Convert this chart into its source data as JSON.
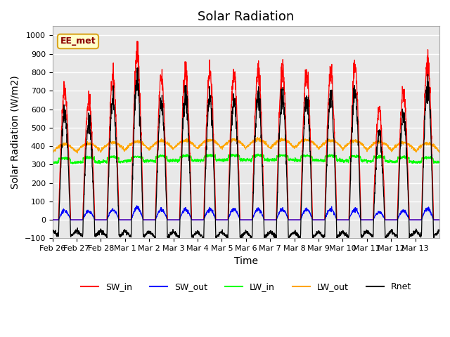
{
  "title": "Solar Radiation",
  "xlabel": "Time",
  "ylabel": "Solar Radiation (W/m2)",
  "ylim": [
    -100,
    1050
  ],
  "annotation": "EE_met",
  "bg_color": "#e8e8e8",
  "grid_color": "white",
  "legend_entries": [
    "SW_in",
    "SW_out",
    "LW_in",
    "LW_out",
    "Rnet"
  ],
  "legend_colors": [
    "red",
    "blue",
    "lime",
    "orange",
    "black"
  ],
  "xtick_labels": [
    "Feb 26",
    "Feb 27",
    "Feb 28",
    "Mar 1",
    "Mar 2",
    "Mar 3",
    "Mar 4",
    "Mar 5",
    "Mar 6",
    "Mar 7",
    "Mar 8",
    "Mar 9",
    "Mar 10",
    "Mar 11",
    "Mar 12",
    "Mar 13"
  ],
  "n_days": 16,
  "sw_in_peaks": [
    710,
    650,
    770,
    905,
    765,
    805,
    805,
    800,
    805,
    820,
    800,
    800,
    810,
    590,
    690,
    855
  ],
  "title_fontsize": 13,
  "label_fontsize": 10,
  "tick_fontsize": 8
}
